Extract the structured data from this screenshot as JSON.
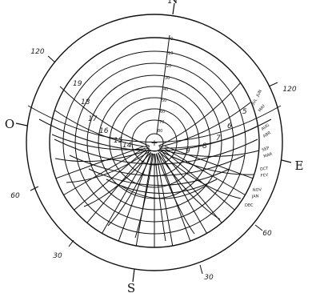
{
  "cardinals": {
    "north": "N",
    "south": "S",
    "east": "E",
    "west": "O"
  },
  "azimuth_labels": [
    "120",
    "120",
    "60",
    "60",
    "30",
    "30"
  ],
  "altitude_labels": [
    "0",
    "10",
    "20",
    "30",
    "40",
    "50",
    "60",
    "70",
    "80"
  ],
  "month_labels": [
    "JUN",
    "JUL",
    "MAY",
    "AUG",
    "ABR",
    "SEP",
    "MAR",
    "OCT",
    "FEV",
    "NOV",
    "JAN",
    "DEC"
  ],
  "hour_labels": [
    "5",
    "6",
    "7",
    "8",
    "9",
    "14",
    "15",
    "16",
    "17",
    "18",
    "19"
  ],
  "center_mark": "+"
}
